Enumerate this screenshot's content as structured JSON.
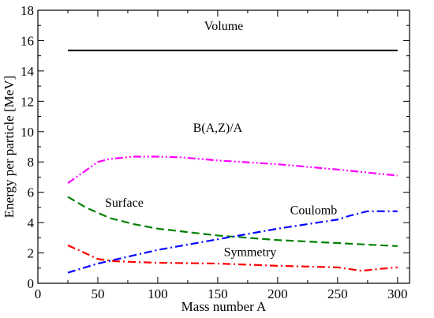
{
  "chart_data": {
    "type": "line",
    "xlabel": "Mass number A",
    "ylabel": "Energy per particle [MeV]",
    "xlim": [
      0,
      310
    ],
    "ylim": [
      0,
      18
    ],
    "x_ticks": [
      0,
      50,
      100,
      150,
      200,
      250,
      300
    ],
    "y_ticks": [
      0,
      2,
      4,
      6,
      8,
      10,
      12,
      14,
      16,
      18
    ],
    "grid": false,
    "legend": "none",
    "series": [
      {
        "name": "Volume",
        "color": "#000000",
        "style": "solid",
        "x": [
          25,
          300
        ],
        "y": [
          15.35,
          15.35
        ]
      },
      {
        "name": "B(A,Z)/A",
        "color": "#ff00ff",
        "style": "dash-dot-dot",
        "x": [
          25,
          50,
          60,
          80,
          100,
          120,
          150,
          200,
          250,
          300
        ],
        "y": [
          6.6,
          8.0,
          8.2,
          8.35,
          8.35,
          8.3,
          8.1,
          7.85,
          7.5,
          7.1
        ]
      },
      {
        "name": "Surface",
        "color": "#008000",
        "style": "dashed",
        "x": [
          25,
          40,
          60,
          80,
          100,
          150,
          200,
          250,
          300
        ],
        "y": [
          5.7,
          5.0,
          4.3,
          3.9,
          3.6,
          3.15,
          2.85,
          2.65,
          2.45
        ]
      },
      {
        "name": "Coulomb",
        "color": "#0000ff",
        "style": "dash-dot",
        "x": [
          25,
          50,
          100,
          150,
          200,
          250,
          260,
          275,
          300
        ],
        "y": [
          0.7,
          1.3,
          2.2,
          2.9,
          3.6,
          4.2,
          4.45,
          4.75,
          4.75
        ]
      },
      {
        "name": "Symmetry",
        "color": "#ff0000",
        "style": "dash-dot",
        "x": [
          25,
          35,
          50,
          65,
          100,
          150,
          200,
          250,
          270,
          285,
          300
        ],
        "y": [
          2.5,
          2.15,
          1.6,
          1.45,
          1.35,
          1.3,
          1.15,
          1.05,
          0.82,
          0.95,
          1.05
        ]
      }
    ],
    "annotations": [
      {
        "text": "Volume",
        "x": 155,
        "y": 16.7
      },
      {
        "text": "B(A,Z)/A",
        "x": 150,
        "y": 10.0
      },
      {
        "text": "Surface",
        "x": 72,
        "y": 5.05
      },
      {
        "text": "Coulomb",
        "x": 230,
        "y": 4.55
      },
      {
        "text": "Symmetry",
        "x": 177,
        "y": 1.8
      }
    ]
  }
}
